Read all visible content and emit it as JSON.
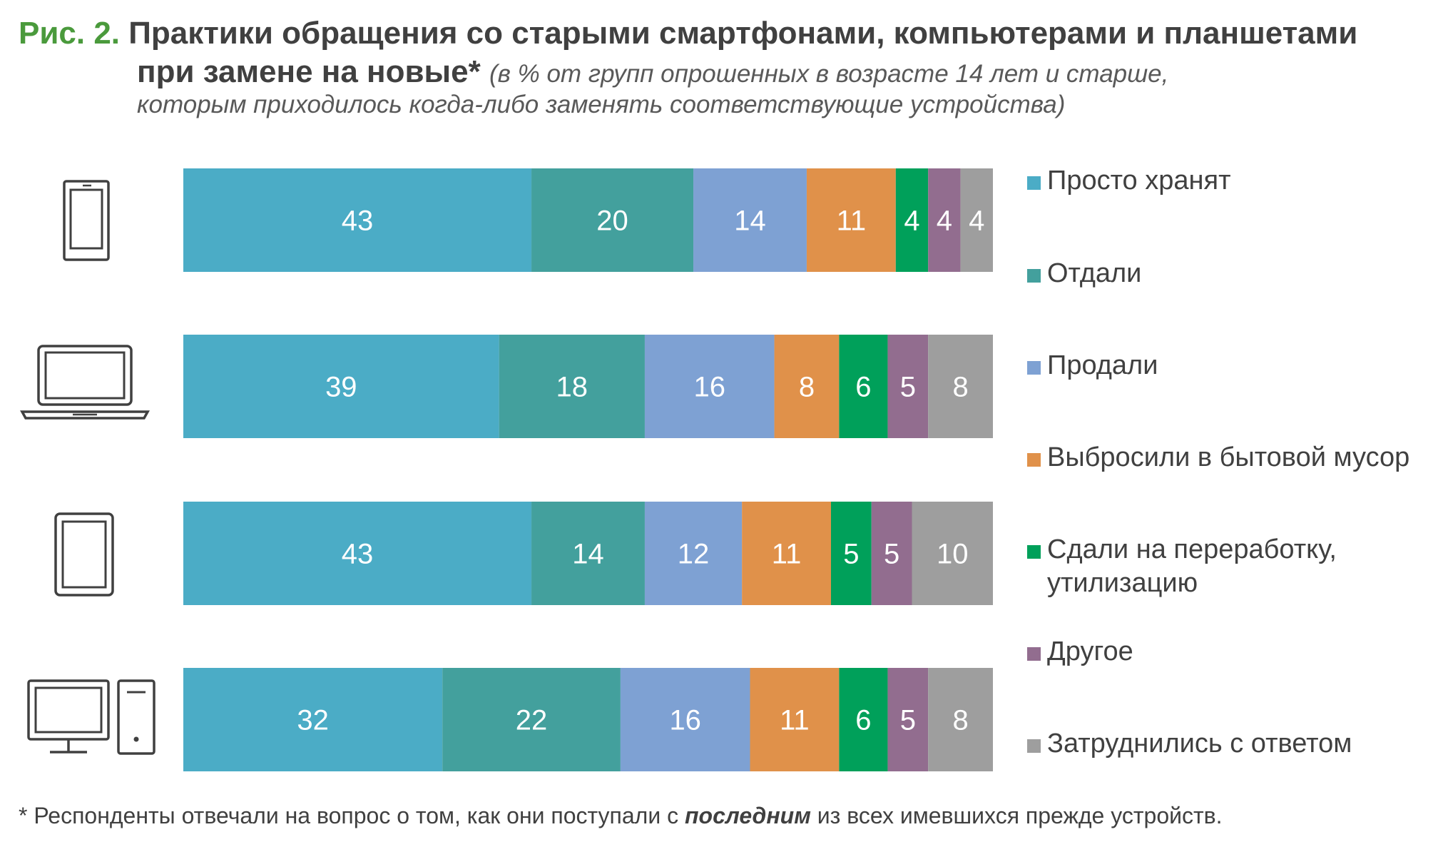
{
  "title": {
    "fig_label": "Рис. 2.",
    "line1": "Практики обращения со старыми смартфонами, компьютерами и планшетами",
    "line2": "при замене на новые*",
    "line2_note": "(в % от групп опрошенных в возрасте 14 лет и старше,",
    "line3_note": "которым приходилось когда-либо заменять соответствующие устройства)"
  },
  "footnote": {
    "before": "* Респонденты отвечали на вопрос о том, как они поступали с ",
    "emphasis": "последним",
    "after": " из всех имевшихся прежде устройств."
  },
  "icons": [
    "smartphone-icon",
    "laptop-icon",
    "tablet-icon",
    "desktop-computer-icon"
  ],
  "chart_data": {
    "type": "bar",
    "orientation": "horizontal",
    "stacked": true,
    "title": "Практики обращения со старыми смартфонами, компьютерами и планшетами при замене на новые*",
    "categories_shown_as_icons": [
      "smartphone",
      "laptop",
      "tablet",
      "desktop computer"
    ],
    "series": [
      {
        "name": "Просто хранят",
        "color": "#4bacc6",
        "values": [
          43,
          39,
          43,
          32
        ]
      },
      {
        "name": "Отдали",
        "color": "#43a09d",
        "values": [
          20,
          18,
          14,
          22
        ]
      },
      {
        "name": "Продали",
        "color": "#7ea1d3",
        "values": [
          14,
          16,
          12,
          16
        ]
      },
      {
        "name": "Выбросили в бытовой мусор",
        "color": "#e0914a",
        "values": [
          11,
          8,
          11,
          11
        ]
      },
      {
        "name": "Сдали на переработку, утилизацию",
        "color": "#00a05a",
        "values": [
          4,
          6,
          5,
          6
        ]
      },
      {
        "name": "Другое",
        "color": "#926d8f",
        "values": [
          4,
          5,
          5,
          5
        ]
      },
      {
        "name": "Затруднились с ответом",
        "color": "#9e9e9e",
        "values": [
          4,
          8,
          10,
          8
        ]
      }
    ],
    "legend_position": "right",
    "grid": false
  }
}
